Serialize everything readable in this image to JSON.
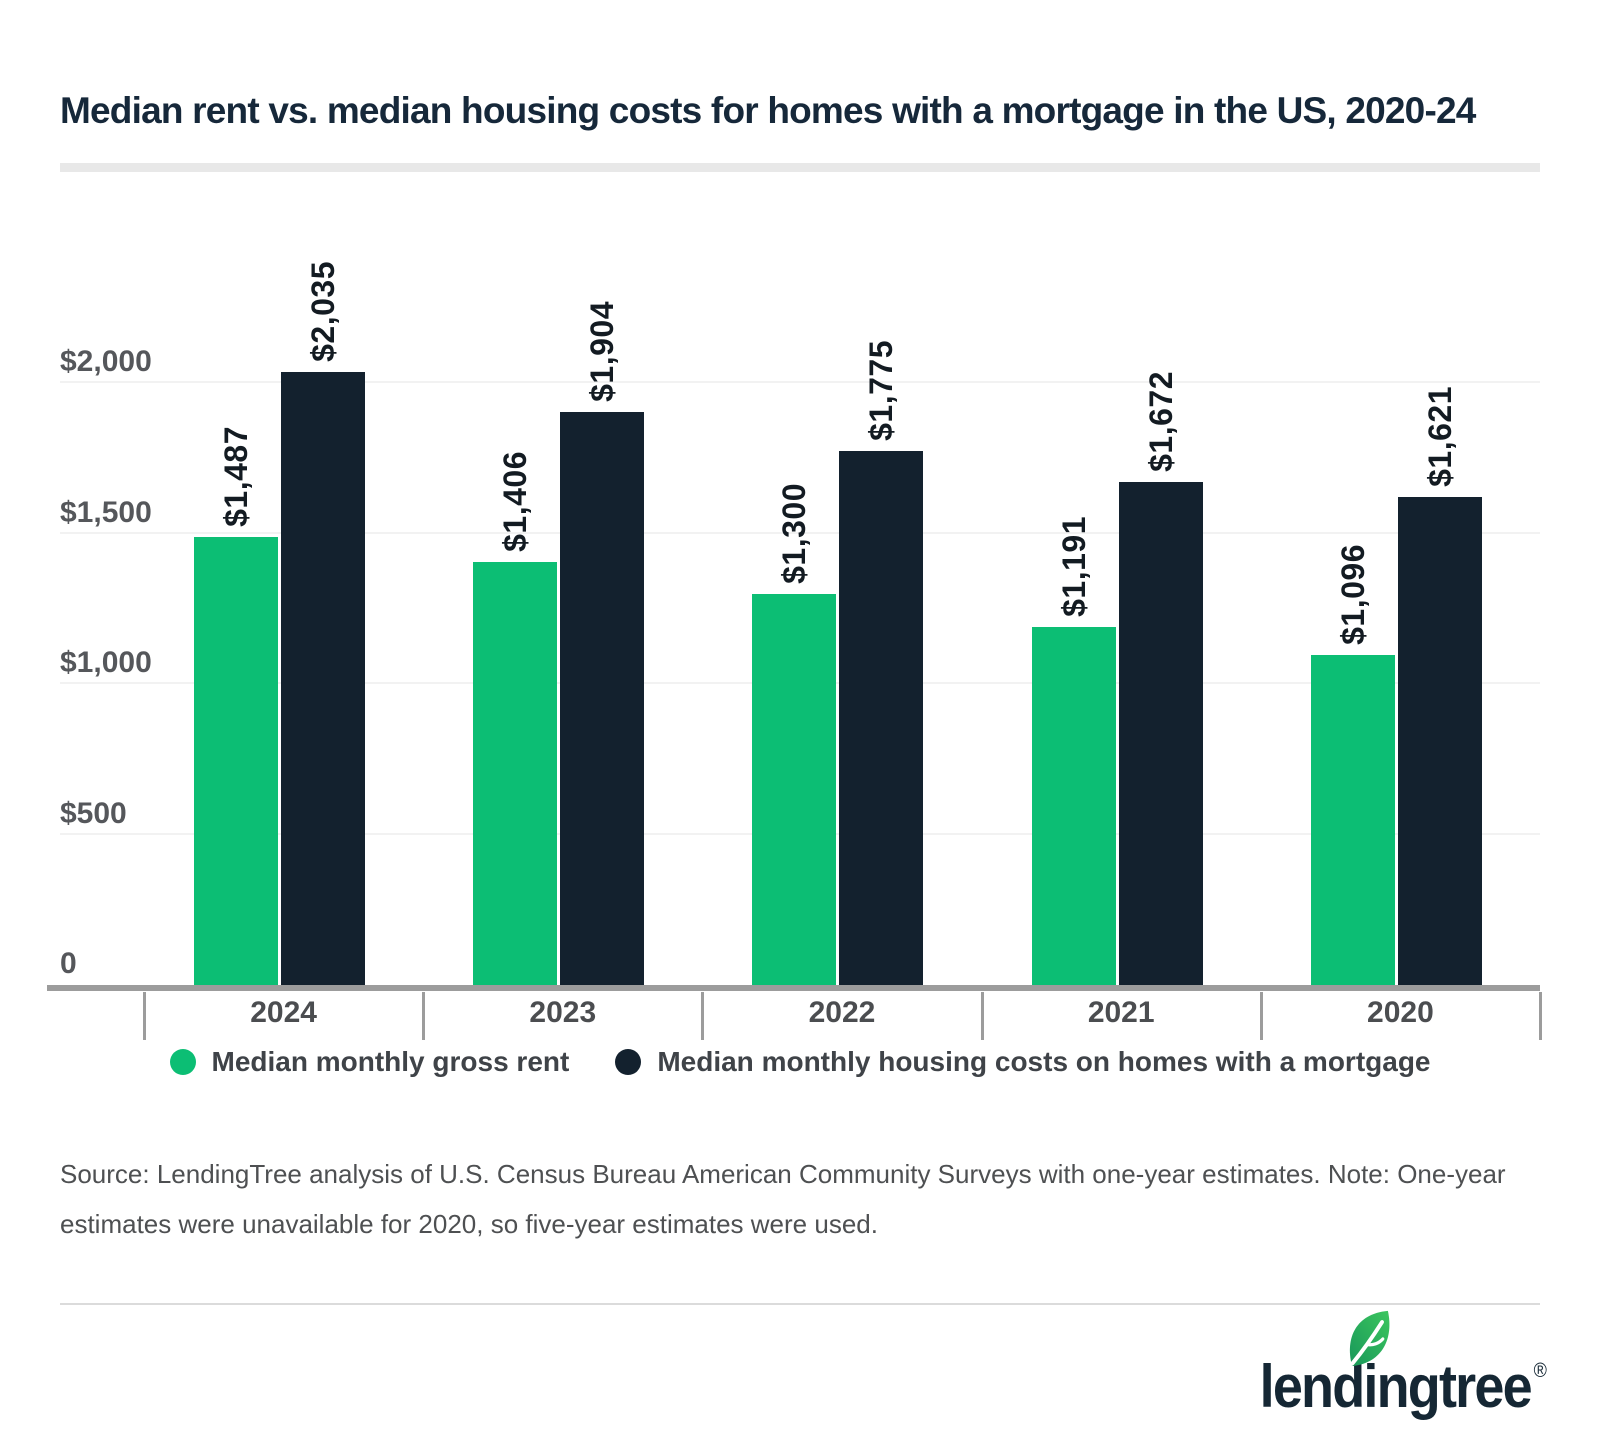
{
  "title": "Median rent vs. median housing costs for homes with a mortgage in the US, 2020-24",
  "chart_data": {
    "type": "bar",
    "title": "Median rent vs. median housing costs for homes with a mortgage in the US, 2020-24",
    "categories": [
      "2024",
      "2023",
      "2022",
      "2021",
      "2020"
    ],
    "series": [
      {
        "name": "Median monthly gross rent",
        "color": "#0cbe74",
        "values": [
          1487,
          1406,
          1300,
          1191,
          1096
        ],
        "labels": [
          "$1,487",
          "$1,406",
          "$1,300",
          "$1,191",
          "$1,096"
        ]
      },
      {
        "name": "Median monthly housing costs on homes with a mortgage",
        "color": "#13212e",
        "values": [
          2035,
          1904,
          1775,
          1672,
          1621
        ],
        "labels": [
          "$2,035",
          "$1,904",
          "$1,775",
          "$1,672",
          "$1,621"
        ]
      }
    ],
    "yticks": [
      {
        "value": 0,
        "label": "0"
      },
      {
        "value": 500,
        "label": "$500"
      },
      {
        "value": 1000,
        "label": "$1,000"
      },
      {
        "value": 1500,
        "label": "$1,500"
      },
      {
        "value": 2000,
        "label": "$2,000"
      }
    ],
    "ylim": [
      0,
      2100
    ],
    "xlabel": "",
    "ylabel": "",
    "grid": true,
    "legend_position": "bottom",
    "value_label_rotation": -90
  },
  "source_note": "Source: LendingTree analysis of U.S. Census Bureau American Community Surveys with one-year estimates. Note: One-year estimates were unavailable for 2020, so five-year estimates were used.",
  "logo": {
    "wordmark": "lendingtree",
    "registered": "®",
    "leaf_color_dark": "#18975a",
    "leaf_color_light": "#3cc65e",
    "text_color": "#152734"
  }
}
